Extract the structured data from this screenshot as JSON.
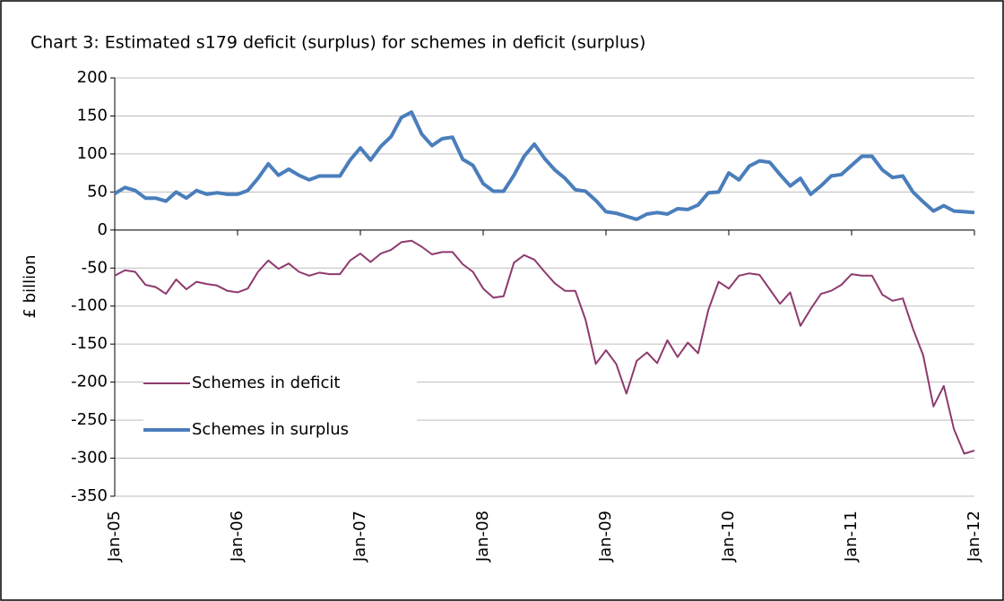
{
  "chart_data": {
    "type": "line",
    "title": "Chart 3: Estimated s179 deficit (surplus) for schemes in deficit (surplus)",
    "y_label": "£ billion",
    "categories": [
      "Jan-05",
      null,
      null,
      null,
      null,
      null,
      null,
      null,
      null,
      null,
      null,
      null,
      "Jan-06",
      null,
      null,
      null,
      null,
      null,
      null,
      null,
      null,
      null,
      null,
      null,
      "Jan-07",
      null,
      null,
      null,
      null,
      null,
      null,
      null,
      null,
      null,
      null,
      null,
      "Jan-08",
      null,
      null,
      null,
      null,
      null,
      null,
      null,
      null,
      null,
      null,
      null,
      "Jan-09",
      null,
      null,
      null,
      null,
      null,
      null,
      null,
      null,
      null,
      null,
      null,
      "Jan-10",
      null,
      null,
      null,
      null,
      null,
      null,
      null,
      null,
      null,
      null,
      null,
      "Jan-11",
      null,
      null,
      null,
      null,
      null,
      null,
      null,
      null,
      null,
      null,
      null,
      "Jan-12"
    ],
    "series": [
      {
        "name": "Schemes in deficit",
        "color": "#8e3a6e",
        "width": 2,
        "values": [
          -60,
          -53,
          -55,
          -72,
          -75,
          -84,
          -65,
          -78,
          -68,
          -71,
          -73,
          -80,
          -82,
          -77,
          -55,
          -40,
          -51,
          -44,
          -55,
          -60,
          -56,
          -58,
          -58,
          -40,
          -31,
          -42,
          -31,
          -26,
          -16,
          -14,
          -22,
          -32,
          -29,
          -29,
          -45,
          -55,
          -77,
          -89,
          -87,
          -43,
          -33,
          -39,
          -55,
          -70,
          -80,
          -80,
          -118,
          -176,
          -158,
          -176,
          -215,
          -172,
          -161,
          -175,
          -145,
          -167,
          -148,
          -162,
          -105,
          -68,
          -77,
          -60,
          -57,
          -59,
          -78,
          -97,
          -82,
          -126,
          -104,
          -84,
          -80,
          -72,
          -58,
          -60,
          -60,
          -85,
          -93,
          -90,
          -130,
          -165,
          -232,
          -205,
          -262,
          -294,
          -290
        ]
      },
      {
        "name": "Schemes in surplus",
        "color": "#4a7ebb",
        "width": 4,
        "values": [
          48,
          56,
          52,
          42,
          42,
          38,
          50,
          42,
          52,
          47,
          49,
          47,
          47,
          52,
          68,
          87,
          72,
          80,
          72,
          66,
          71,
          71,
          71,
          92,
          108,
          92,
          110,
          123,
          148,
          155,
          126,
          111,
          120,
          122,
          93,
          85,
          61,
          51,
          51,
          72,
          97,
          113,
          94,
          79,
          68,
          53,
          51,
          39,
          24,
          22,
          18,
          14,
          21,
          23,
          21,
          28,
          27,
          33,
          49,
          50,
          75,
          66,
          84,
          91,
          89,
          73,
          58,
          68,
          47,
          58,
          71,
          73,
          85,
          97,
          97,
          79,
          69,
          71,
          50,
          37,
          25,
          32,
          25,
          24,
          23
        ]
      }
    ],
    "ylim": [
      -350,
      200
    ],
    "yticks": [
      200,
      150,
      100,
      50,
      0,
      -50,
      -100,
      -150,
      -200,
      -250,
      -300,
      -350
    ],
    "grid": true,
    "legend": "lower left"
  }
}
